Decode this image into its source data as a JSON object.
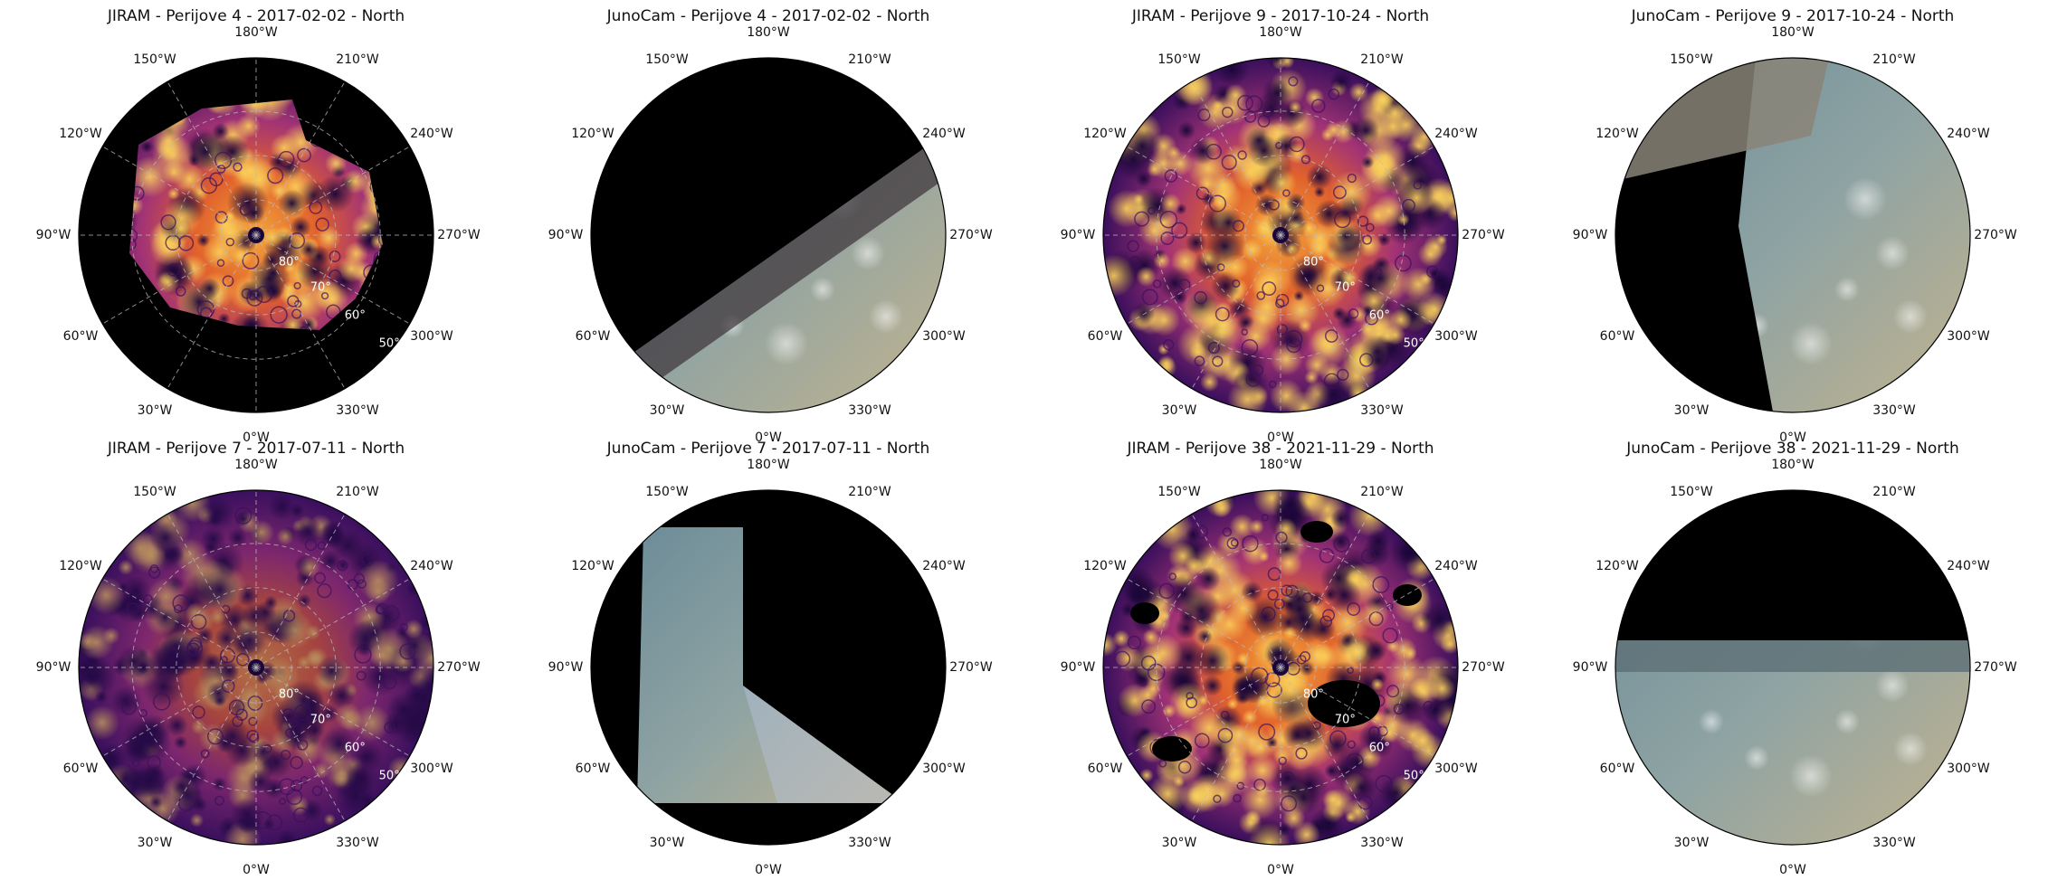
{
  "figure": {
    "panels": [
      {
        "title": "JIRAM - Perijove 4 - 2017-02-02 - North",
        "kind": "jiram",
        "variant": "pj4"
      },
      {
        "title": "JunoCam - Perijove 4 - 2017-02-02 - North",
        "kind": "junocam",
        "variant": "pj4"
      },
      {
        "title": "JIRAM - Perijove 9 - 2017-10-24 - North",
        "kind": "jiram",
        "variant": "full"
      },
      {
        "title": "JunoCam - Perijove 9 - 2017-10-24 - North",
        "kind": "junocam",
        "variant": "pj9"
      },
      {
        "title": "JIRAM - Perijove 7 - 2017-07-11 - North",
        "kind": "jiram",
        "variant": "purple"
      },
      {
        "title": "JunoCam - Perijove 7 - 2017-07-11 - North",
        "kind": "junocam",
        "variant": "pj7"
      },
      {
        "title": "JIRAM - Perijove 38 - 2021-11-29 - North",
        "kind": "jiram",
        "variant": "gaps"
      },
      {
        "title": "JunoCam - Perijove 38 - 2021-11-29 - North",
        "kind": "junocam",
        "variant": "pj38"
      }
    ],
    "longitude_labels": [
      "180°W",
      "210°W",
      "240°W",
      "270°W",
      "300°W",
      "330°W",
      "0°W",
      "30°W",
      "60°W",
      "90°W",
      "120°W",
      "150°W"
    ],
    "latitude_labels": [
      "80°",
      "70°",
      "60°",
      "50°"
    ],
    "colors": {
      "background": "#000000",
      "inferno_dark": "#2a0f52",
      "inferno_mid": "#8e2d7a",
      "inferno_hot": "#e4622a",
      "inferno_bright": "#fbb12e",
      "junocam_blue": "#5e7f8d",
      "junocam_tan": "#b8a98b"
    }
  }
}
